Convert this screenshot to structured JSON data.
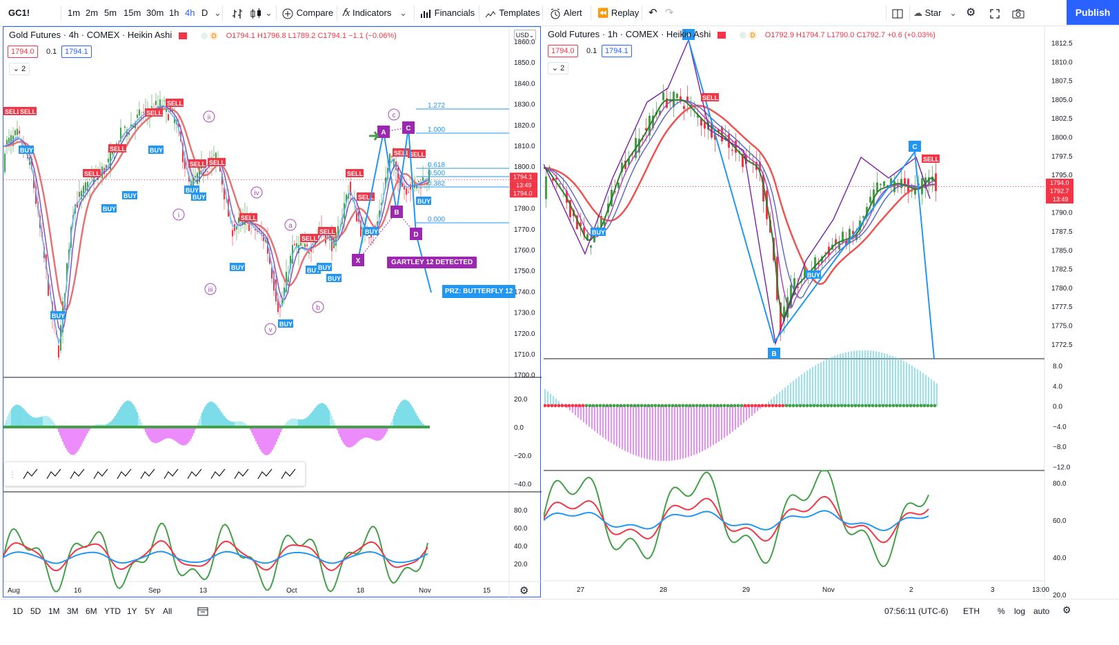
{
  "toolbar": {
    "symbol": "GC1!",
    "intervals": [
      "1m",
      "2m",
      "5m",
      "15m",
      "30m",
      "1h",
      "4h",
      "D"
    ],
    "active_interval": "4h",
    "compare": "Compare",
    "indicators": "Indicators",
    "financials": "Financials",
    "templates": "Templates",
    "alert": "Alert",
    "replay": "Replay",
    "layout_name": "Star",
    "publish": "Publish"
  },
  "left_chart": {
    "title": "Gold Futures · 4h · COMEX · Heikin Ashi",
    "ohlc": "O1794.1 H1796.8 L1789.2 C1794.1 −1.1 (−0.06%)",
    "bid": "1794.0",
    "spread": "0.1",
    "ask": "1794.1",
    "indicator_count": "2",
    "currency": "USD",
    "price_ticks": [
      "1860.0",
      "1850.0",
      "1840.0",
      "1830.0",
      "1820.0",
      "1810.0",
      "1800.0",
      "1790.0",
      "1780.0",
      "1770.0",
      "1760.0",
      "1750.0",
      "1740.0",
      "1730.0",
      "1720.0",
      "1710.0",
      "1700.0"
    ],
    "last_price": "1794.1",
    "countdown": "13:49",
    "last_price_2": "1794.0",
    "osc_ticks": [
      "20.0",
      "0.0",
      "−20.0",
      "−40.0"
    ],
    "rsi_ticks": [
      "80.0",
      "60.0",
      "40.0",
      "20.0"
    ],
    "time_ticks": [
      "Aug",
      "16",
      "Sep",
      "13",
      "Oct",
      "18",
      "Nov",
      "15"
    ],
    "fib_levels": [
      "1.272",
      "1.000",
      "0.618",
      "0.500",
      "0.382",
      "0.000"
    ],
    "pattern_label": "GARTLEY 12 DETECTED",
    "prz_label": "PRZ: BUTTERFLY 12",
    "wave_labels": [
      "ii",
      "i",
      "iii",
      "iv",
      "v",
      "a",
      "b",
      "c"
    ],
    "points": [
      "X",
      "A",
      "B",
      "C",
      "D"
    ]
  },
  "right_chart": {
    "title": "Gold Futures · 1h · COMEX · Heikin Ashi",
    "ohlc": "O1792.9 H1794.7 L1790.0 C1792.7 +0.6 (+0.03%)",
    "bid": "1794.0",
    "spread": "0.1",
    "ask": "1794.1",
    "indicator_count": "2",
    "price_ticks": [
      "1812.5",
      "1810.0",
      "1807.5",
      "1805.0",
      "1802.5",
      "1800.0",
      "1797.5",
      "1795.0",
      "1792.5",
      "1790.0",
      "1787.5",
      "1785.0",
      "1782.5",
      "1780.0",
      "1777.5",
      "1775.0",
      "1772.5"
    ],
    "last_price": "1794.0",
    "last_price_2": "1792.7",
    "countdown": "13:49",
    "osc_ticks": [
      "8.0",
      "4.0",
      "0.0",
      "−4.0",
      "−8.0",
      "−12.0"
    ],
    "rsi_ticks": [
      "80.0",
      "60.0",
      "40.0",
      "20.0"
    ],
    "time_ticks": [
      "27",
      "28",
      "29",
      "Nov",
      "2",
      "3",
      "13:00"
    ],
    "points": [
      "A",
      "B",
      "C"
    ]
  },
  "bottom": {
    "ranges": [
      "1D",
      "5D",
      "1M",
      "3M",
      "6M",
      "YTD",
      "1Y",
      "5Y",
      "All"
    ],
    "clock": "07:56:11 (UTC-6)",
    "session": "ETH",
    "pct": "%",
    "log": "log",
    "auto": "auto"
  },
  "colors": {
    "buy": "#2196f3",
    "sell": "#f23645",
    "green": "#43a047",
    "purple": "#9c27b0",
    "accent": "#2962ff"
  }
}
